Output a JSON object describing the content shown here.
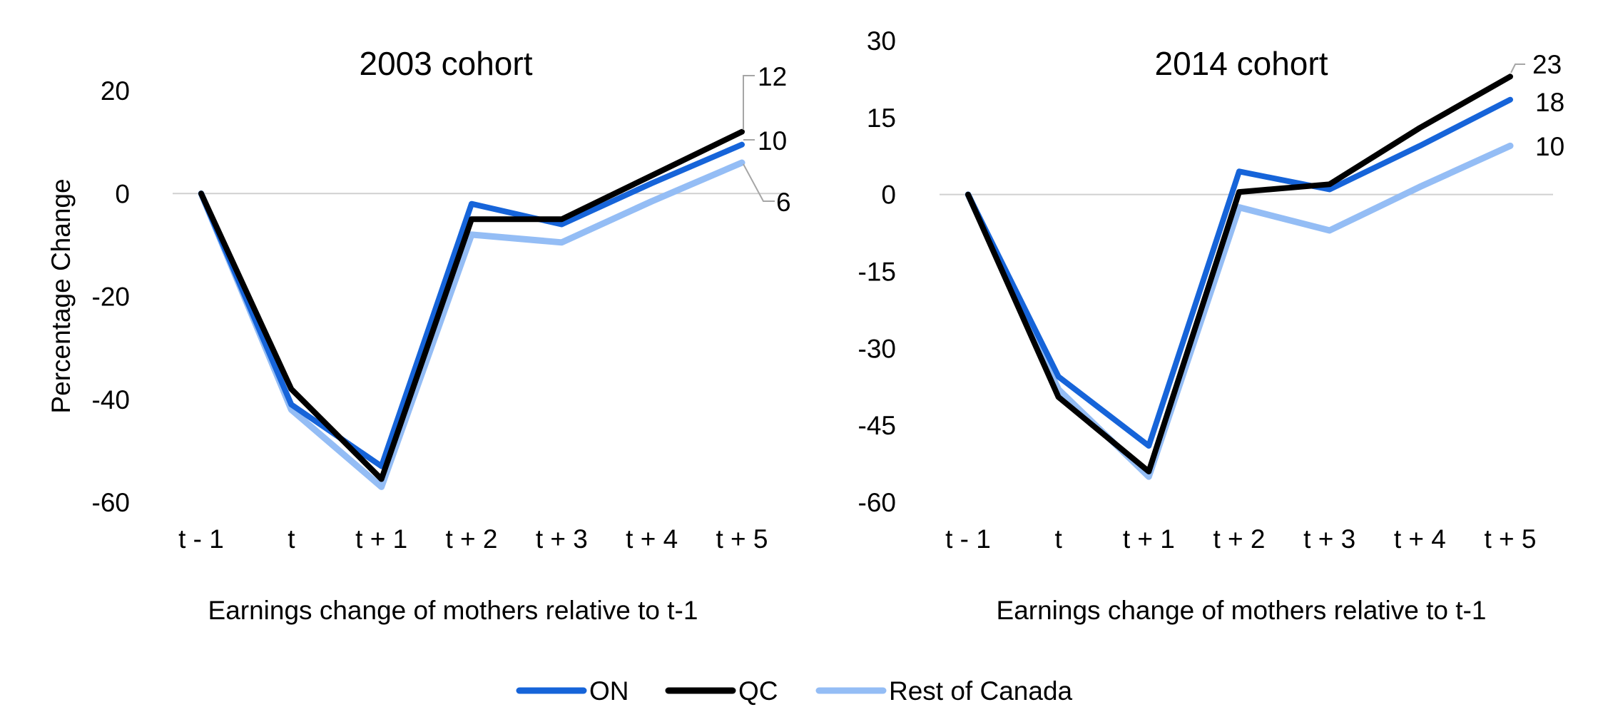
{
  "colors": {
    "ON": "#1664d9",
    "QC": "#000000",
    "Rest of Canada": "#94bdf5",
    "zero_line": "#d0d0d0",
    "leader": "#a6a6a6"
  },
  "legend": {
    "items": [
      "ON",
      "QC",
      "Rest of Canada"
    ],
    "position": "bottom"
  },
  "chart_data": [
    {
      "type": "line",
      "title": "2003 cohort",
      "xlabel": "Earnings change of mothers relative to t-1",
      "ylabel": "Percentage Change",
      "categories": [
        "t - 1",
        "t",
        "t + 1",
        "t + 2",
        "t + 3",
        "t + 4",
        "t + 5"
      ],
      "yticks": [
        "20",
        "0",
        "-20",
        "-40",
        "-60"
      ],
      "ylim": [
        -60,
        20
      ],
      "grid": false,
      "series": [
        {
          "name": "ON",
          "values": [
            0,
            -41,
            -53,
            -2,
            -6,
            2,
            9.5
          ]
        },
        {
          "name": "QC",
          "values": [
            0,
            -38,
            -55.5,
            -5,
            -5,
            3.5,
            12
          ]
        },
        {
          "name": "Rest of Canada",
          "values": [
            0,
            -42,
            -57,
            -8,
            -9.5,
            -1.5,
            6
          ]
        }
      ],
      "end_labels": [
        "12",
        "10",
        "6"
      ]
    },
    {
      "type": "line",
      "title": "2014 cohort",
      "xlabel": "Earnings change of mothers relative to t-1",
      "ylabel": "",
      "categories": [
        "t - 1",
        "t",
        "t + 1",
        "t + 2",
        "t + 3",
        "t + 4",
        "t + 5"
      ],
      "yticks": [
        "30",
        "15",
        "0",
        "-15",
        "-30",
        "-45",
        "-60"
      ],
      "ylim": [
        -60,
        30
      ],
      "grid": false,
      "series": [
        {
          "name": "ON",
          "values": [
            0,
            -35.5,
            -49,
            4.5,
            1,
            9.5,
            18.5
          ]
        },
        {
          "name": "QC",
          "values": [
            0,
            -39.5,
            -54,
            0.5,
            2,
            13,
            23
          ]
        },
        {
          "name": "Rest of Canada",
          "values": [
            0,
            -38,
            -55,
            -2.5,
            -7,
            1.5,
            9.5
          ]
        }
      ],
      "end_labels": [
        "23",
        "18",
        "10"
      ]
    }
  ]
}
